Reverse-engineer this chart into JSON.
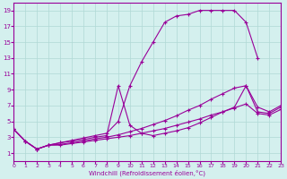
{
  "xlabel": "Windchill (Refroidissement éolien,°C)",
  "background_color": "#d4f0ee",
  "grid_color": "#b0d8d5",
  "line_color": "#990099",
  "xlim": [
    0,
    23
  ],
  "ylim": [
    0,
    20
  ],
  "xticks": [
    0,
    1,
    2,
    3,
    4,
    5,
    6,
    7,
    8,
    9,
    10,
    11,
    12,
    13,
    14,
    15,
    16,
    17,
    18,
    19,
    20,
    21,
    22,
    23
  ],
  "yticks": [
    1,
    3,
    5,
    7,
    9,
    11,
    13,
    15,
    17,
    19
  ],
  "line_upper_x": [
    0,
    1,
    2,
    3,
    4,
    5,
    6,
    7,
    8,
    9,
    10,
    11,
    12,
    13,
    14,
    15,
    16,
    17,
    18,
    19,
    20,
    21
  ],
  "line_upper_y": [
    4,
    2.5,
    1.5,
    2.0,
    2.3,
    2.6,
    2.9,
    3.2,
    3.5,
    5.0,
    9.5,
    12.5,
    15.0,
    17.5,
    18.3,
    18.5,
    19.0,
    19.0,
    19.0,
    19.0,
    17.5,
    13.0
  ],
  "line_spike_x": [
    0,
    1,
    2,
    3,
    4,
    5,
    6,
    7,
    8,
    9,
    10,
    11,
    12,
    13,
    14,
    15,
    16,
    17,
    18,
    19,
    20,
    21,
    22,
    23
  ],
  "line_spike_y": [
    4,
    2.5,
    1.5,
    2.0,
    2.3,
    2.5,
    2.7,
    3.0,
    3.2,
    9.5,
    4.5,
    3.5,
    3.2,
    3.5,
    3.8,
    4.2,
    4.8,
    5.5,
    6.2,
    6.8,
    9.5,
    6.2,
    6.0,
    6.8
  ],
  "line_mid_x": [
    0,
    1,
    2,
    3,
    4,
    5,
    6,
    7,
    8,
    9,
    10,
    11,
    12,
    13,
    14,
    15,
    16,
    17,
    18,
    19,
    20,
    21,
    22,
    23
  ],
  "line_mid_y": [
    4,
    2.5,
    1.5,
    2.0,
    2.1,
    2.3,
    2.5,
    2.8,
    3.0,
    3.3,
    3.7,
    4.1,
    4.6,
    5.1,
    5.7,
    6.4,
    7.0,
    7.8,
    8.5,
    9.2,
    9.5,
    6.8,
    6.2,
    7.0
  ],
  "line_low_x": [
    0,
    1,
    2,
    3,
    4,
    5,
    6,
    7,
    8,
    9,
    10,
    11,
    12,
    13,
    14,
    15,
    16,
    17,
    18,
    19,
    20,
    21,
    22,
    23
  ],
  "line_low_y": [
    4,
    2.5,
    1.5,
    2.0,
    2.0,
    2.2,
    2.4,
    2.6,
    2.8,
    3.0,
    3.2,
    3.5,
    3.8,
    4.1,
    4.5,
    4.9,
    5.3,
    5.8,
    6.2,
    6.7,
    7.2,
    6.0,
    5.8,
    6.5
  ]
}
